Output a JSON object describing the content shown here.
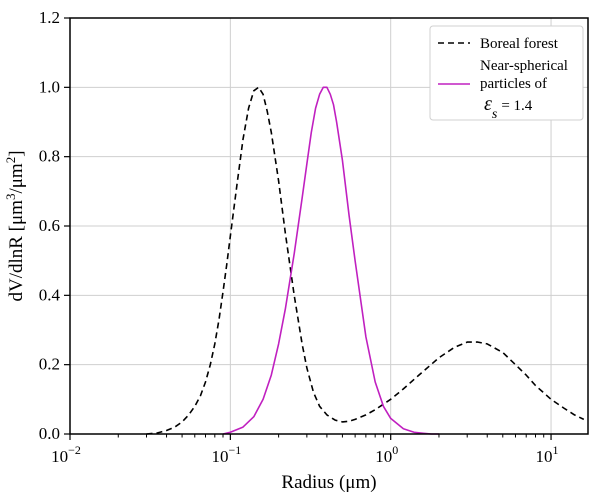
{
  "chart_data": {
    "type": "line",
    "xlabel": "Radius (μm)",
    "ylabel": {
      "base": "dV/dlnR [μm",
      "sup1": "3",
      "mid": "/μm",
      "sup2": "2",
      "end": "]"
    },
    "xscale": "log",
    "xlim": [
      0.01,
      17
    ],
    "ylim": [
      0,
      1.2
    ],
    "grid": true,
    "legend_position": "top-right",
    "x_ticks": [
      {
        "value": 0.01,
        "base": "10",
        "exp": "−2"
      },
      {
        "value": 0.1,
        "base": "10",
        "exp": "−1"
      },
      {
        "value": 1,
        "base": "10",
        "exp": "0"
      },
      {
        "value": 10,
        "base": "10",
        "exp": "1"
      }
    ],
    "y_ticks": [
      {
        "value": 0.0,
        "label": "0.0"
      },
      {
        "value": 0.2,
        "label": "0.2"
      },
      {
        "value": 0.4,
        "label": "0.4"
      },
      {
        "value": 0.6,
        "label": "0.6"
      },
      {
        "value": 0.8,
        "label": "0.8"
      },
      {
        "value": 1.0,
        "label": "1.0"
      },
      {
        "value": 1.2,
        "label": "1.2"
      }
    ],
    "series": [
      {
        "name": "Boreal forest",
        "style": "dashed",
        "color": "#000000",
        "x": [
          0.03,
          0.035,
          0.04,
          0.045,
          0.05,
          0.055,
          0.06,
          0.065,
          0.07,
          0.075,
          0.08,
          0.085,
          0.09,
          0.095,
          0.1,
          0.11,
          0.12,
          0.13,
          0.14,
          0.15,
          0.16,
          0.17,
          0.18,
          0.2,
          0.22,
          0.25,
          0.28,
          0.3,
          0.33,
          0.36,
          0.4,
          0.45,
          0.5,
          0.55,
          0.6,
          0.7,
          0.8,
          1.0,
          1.2,
          1.5,
          2.0,
          2.5,
          3.0,
          3.5,
          4.0,
          5.0,
          6.0,
          7.0,
          8.0,
          10.0,
          12.0,
          14.0,
          16.0
        ],
        "y": [
          0.0,
          0.003,
          0.01,
          0.02,
          0.035,
          0.055,
          0.08,
          0.11,
          0.15,
          0.2,
          0.26,
          0.33,
          0.41,
          0.49,
          0.57,
          0.72,
          0.85,
          0.94,
          0.99,
          1.0,
          0.98,
          0.93,
          0.87,
          0.73,
          0.58,
          0.4,
          0.26,
          0.19,
          0.12,
          0.08,
          0.055,
          0.04,
          0.035,
          0.037,
          0.042,
          0.055,
          0.07,
          0.1,
          0.13,
          0.17,
          0.22,
          0.25,
          0.265,
          0.265,
          0.26,
          0.235,
          0.2,
          0.17,
          0.14,
          0.1,
          0.075,
          0.055,
          0.042
        ]
      },
      {
        "name": "Near-spherical particles of εs = 1.4",
        "style": "solid",
        "color": "#c020c0",
        "x": [
          0.09,
          0.1,
          0.12,
          0.14,
          0.16,
          0.18,
          0.2,
          0.22,
          0.25,
          0.28,
          0.3,
          0.32,
          0.34,
          0.36,
          0.38,
          0.4,
          0.42,
          0.44,
          0.46,
          0.5,
          0.55,
          0.6,
          0.7,
          0.8,
          0.9,
          1.0,
          1.2,
          1.4,
          1.6,
          1.8,
          2.0
        ],
        "y": [
          0.0,
          0.005,
          0.02,
          0.05,
          0.1,
          0.17,
          0.26,
          0.36,
          0.52,
          0.68,
          0.78,
          0.87,
          0.94,
          0.98,
          1.0,
          1.0,
          0.98,
          0.95,
          0.9,
          0.79,
          0.63,
          0.5,
          0.28,
          0.15,
          0.08,
          0.045,
          0.015,
          0.005,
          0.002,
          0.0,
          0.0
        ]
      }
    ],
    "legend": {
      "entry1": "Boreal forest",
      "entry2_line1": "Near-spherical",
      "entry2_line2": "particles of",
      "entry2_symbol": "ε",
      "entry2_sub": "s",
      "entry2_value": "= 1.4"
    }
  }
}
